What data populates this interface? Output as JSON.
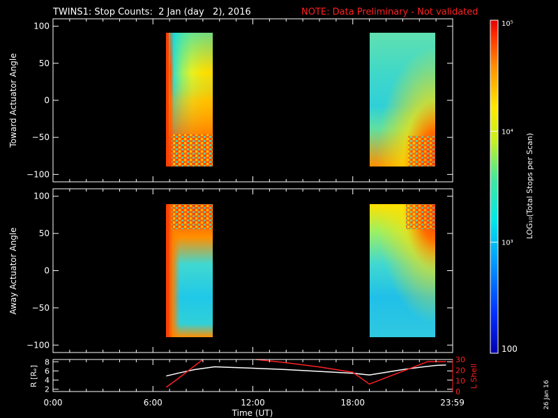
{
  "header": {
    "title": "TWINS1: Stop Counts:  2 Jan (day   2), 2016",
    "note": "NOTE: Data Preliminary - Not validated",
    "note_color": "#ff2020"
  },
  "side_stamp": "26 Jan 16",
  "colorbar": {
    "label": "LOG₁₀(Total Stops per Scan)",
    "tick_labels": [
      "100",
      "10³",
      "10⁴",
      "10⁵"
    ],
    "tick_values": [
      100,
      1000,
      10000,
      100000
    ],
    "scale": "log",
    "range": [
      100,
      100000
    ],
    "colormap": "rainbow (blue-cyan-yellow-red)"
  },
  "chart_data": [
    {
      "type": "heatmap",
      "name": "toward",
      "ylabel": "Toward Actuator Angle",
      "ylim": [
        -110,
        110
      ],
      "yticks": [
        "100",
        "50",
        "0",
        "−50",
        "−100"
      ],
      "ytick_values": [
        100,
        50,
        0,
        -50,
        -100
      ],
      "xlim": [
        0,
        24
      ],
      "data_blocks": [
        {
          "t_start": 7.0,
          "t_end": 9.6,
          "angle_range": [
            -90,
            90
          ],
          "dominant_level": "10^3.5-10^4.5"
        },
        {
          "t_start": 19.0,
          "t_end": 23.55,
          "angle_range": [
            -90,
            90
          ],
          "dominant_level": "10^3.4-10^4.5"
        }
      ]
    },
    {
      "type": "heatmap",
      "name": "away",
      "ylabel": "Away Actuator Angle",
      "ylim": [
        -110,
        110
      ],
      "yticks": [
        "100",
        "50",
        "0",
        "−50",
        "−100"
      ],
      "ytick_values": [
        100,
        50,
        0,
        -50,
        -100
      ],
      "xlim": [
        0,
        24
      ],
      "data_blocks": [
        {
          "t_start": 7.0,
          "t_end": 9.6,
          "angle_range": [
            -90,
            90
          ],
          "dominant_level": "10^3.3-10^4.8"
        },
        {
          "t_start": 19.0,
          "t_end": 23.55,
          "angle_range": [
            -90,
            90
          ],
          "dominant_level": "10^3.3-10^4.6"
        }
      ]
    },
    {
      "type": "line",
      "name": "orbit",
      "ylabel": "R [Rₑ]",
      "y2label": "L Shell",
      "ylim": [
        1.5,
        8.5
      ],
      "yticks": [
        "8",
        "6",
        "4",
        "2"
      ],
      "ytick_values": [
        8,
        6,
        4,
        2
      ],
      "y2lim": [
        0,
        30
      ],
      "y2ticks": [
        "30",
        "20",
        "10",
        "0"
      ],
      "y2tick_values": [
        30,
        20,
        10,
        0
      ],
      "xlim": [
        0,
        24
      ],
      "xticks": [
        "0:00",
        "6:00",
        "12:00",
        "18:00",
        "23:59"
      ],
      "xtick_values": [
        0,
        6,
        12,
        18,
        23.983
      ],
      "xlabel": "Time (UT)",
      "series": [
        {
          "name": "R [Rₑ]",
          "color": "#ffffff",
          "axis": "left",
          "x": [
            6.8,
            7.5,
            8.5,
            9.7,
            12.0,
            14.0,
            16.0,
            18.0,
            19.0,
            20.0,
            21.0,
            22.0,
            23.0,
            23.6
          ],
          "y": [
            4.9,
            5.5,
            6.3,
            6.9,
            6.6,
            6.3,
            5.9,
            5.5,
            5.1,
            5.7,
            6.3,
            6.8,
            7.2,
            7.3
          ]
        },
        {
          "name": "L Shell",
          "color": "#ff2020",
          "axis": "right",
          "x": [
            6.8,
            7.5,
            8.5,
            9.0
          ],
          "y": [
            4,
            12,
            24,
            30
          ]
        },
        {
          "name": "L Shell",
          "color": "#ff2020",
          "axis": "right",
          "x": [
            12.2,
            14.0,
            16.0,
            18.0,
            19.0,
            20.0,
            21.5,
            22.5,
            23.6
          ],
          "y": [
            30,
            27,
            23,
            18,
            7,
            13,
            22,
            28,
            28
          ]
        }
      ]
    }
  ]
}
